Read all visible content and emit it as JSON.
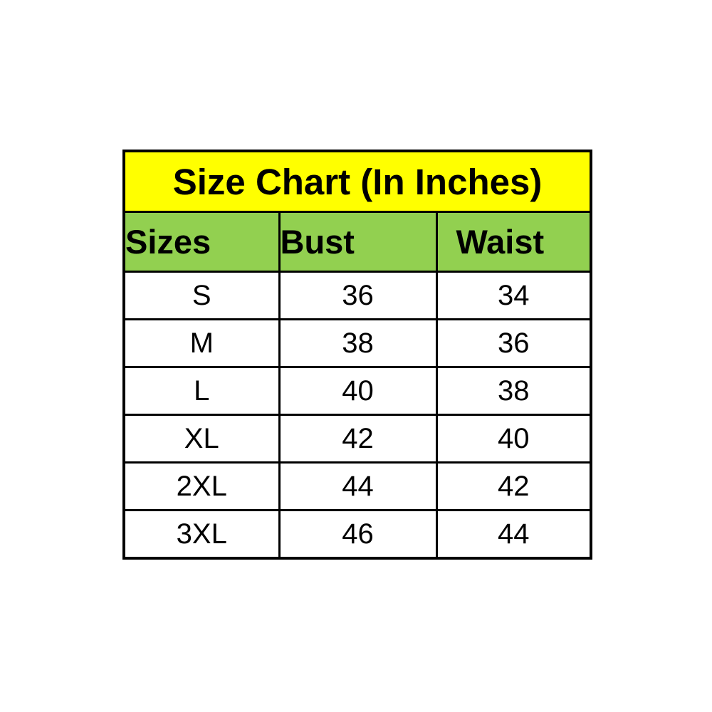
{
  "chart_data": {
    "type": "table",
    "title": "Size Chart (In Inches)",
    "units": "inches",
    "columns": [
      "Sizes",
      "Bust",
      "Waist"
    ],
    "rows": [
      [
        "S",
        "36",
        "34"
      ],
      [
        "M",
        "38",
        "36"
      ],
      [
        "L",
        "40",
        "38"
      ],
      [
        "XL",
        "42",
        "40"
      ],
      [
        "2XL",
        "44",
        "42"
      ],
      [
        "3XL",
        "46",
        "44"
      ]
    ]
  },
  "colors": {
    "title_background": "#FFFF00",
    "header_background": "#92D050",
    "row_background": "#FFFFFF",
    "border": "#000000",
    "text": "#000000",
    "page_background": "#FFFFFF"
  }
}
